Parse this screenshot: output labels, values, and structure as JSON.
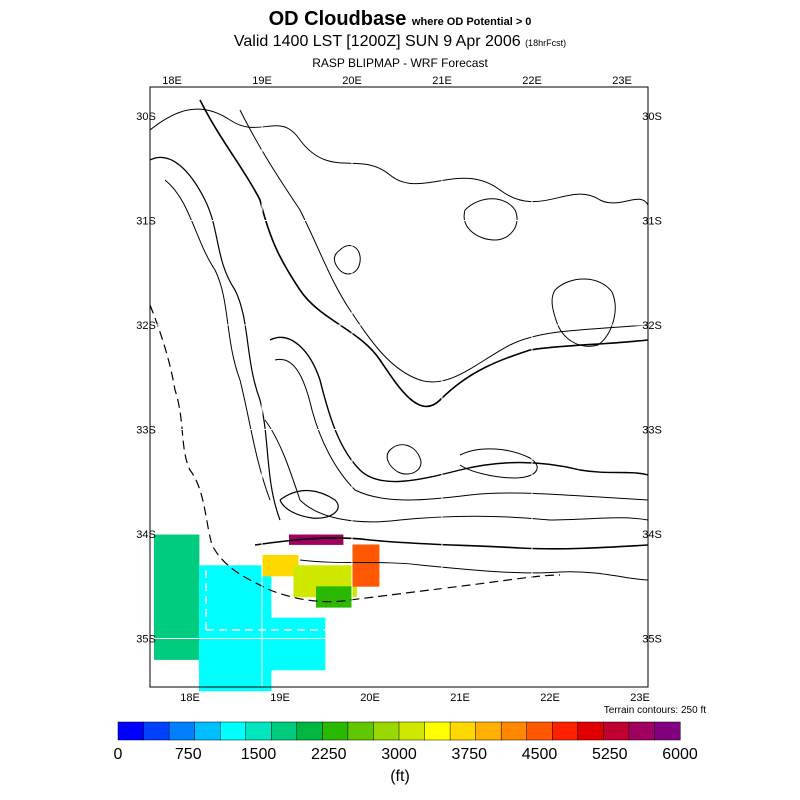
{
  "title": {
    "main": "OD Cloudbase",
    "main_sub": "where OD Potential > 0",
    "valid": "Valid 1400 LST [1200Z] SUN 9 Apr 2006",
    "valid_sub": "(18hrFcst)",
    "source": "RASP BLIPMAP - WRF Forecast"
  },
  "axes": {
    "top_lon": [
      "18E",
      "19E",
      "20E",
      "21E",
      "22E",
      "23E"
    ],
    "bottom_lon": [
      "18E",
      "19E",
      "20E",
      "21E",
      "22E",
      "23E"
    ],
    "left_lat": [
      "30S",
      "31S",
      "32S",
      "33S",
      "34S",
      "35S"
    ],
    "right_lat": [
      "30S",
      "31S",
      "32S",
      "33S",
      "34S",
      "35S"
    ]
  },
  "terrain_note": "Terrain contours: 250 ft",
  "colorbar": {
    "colors": [
      "#0000ff",
      "#0040ff",
      "#0080ff",
      "#00bfff",
      "#00ffff",
      "#00e6bf",
      "#00cc80",
      "#00b840",
      "#2ab800",
      "#60c800",
      "#98d800",
      "#d0e800",
      "#ffff00",
      "#ffd800",
      "#ffb000",
      "#ff8800",
      "#ff5800",
      "#ff2000",
      "#e00000",
      "#c00030",
      "#a00060",
      "#800080"
    ],
    "tick_labels": [
      "0",
      "750",
      "1500",
      "2250",
      "3000",
      "3750",
      "4500",
      "5250",
      "6000"
    ],
    "units": "(ft)"
  },
  "chart_data": {
    "type": "heatmap",
    "field": "OD Cloudbase (ft)",
    "value_range": [
      0,
      6000
    ],
    "cell_size_deg": 0.1,
    "regions": [
      {
        "lon_range": [
          17.8,
          18.3
        ],
        "lat_range": [
          -34.0,
          -35.2
        ],
        "value": 1700
      },
      {
        "lon_range": [
          18.3,
          19.1
        ],
        "lat_range": [
          -34.3,
          -35.6
        ],
        "value": 1250
      },
      {
        "lon_range": [
          19.1,
          19.7
        ],
        "lat_range": [
          -34.8,
          -35.3
        ],
        "value": 1350
      },
      {
        "lon_range": [
          19.0,
          19.35
        ],
        "lat_range": [
          -34.2,
          -34.4
        ],
        "value": 3600
      },
      {
        "lon_range": [
          19.35,
          20.0
        ],
        "lat_range": [
          -34.3,
          -34.6
        ],
        "value": 3200
      },
      {
        "lon_range": [
          19.6,
          20.0
        ],
        "lat_range": [
          -34.5,
          -34.7
        ],
        "value": 2400
      },
      {
        "lon_range": [
          20.0,
          20.3
        ],
        "lat_range": [
          -34.1,
          -34.5
        ],
        "value": 4500
      },
      {
        "lon_range": [
          19.3,
          19.9
        ],
        "lat_range": [
          -34.0,
          -34.1
        ],
        "value": 5600
      }
    ]
  }
}
